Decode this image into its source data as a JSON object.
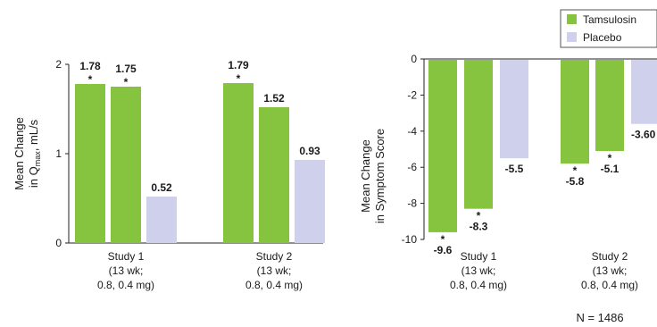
{
  "colors": {
    "tamsulosin": "#86c440",
    "placebo": "#cfd0ec",
    "axis": "#222222"
  },
  "legend": {
    "items": [
      {
        "name": "Tamsulosin",
        "color": "#86c440"
      },
      {
        "name": "Placebo",
        "color": "#cfd0ec"
      }
    ]
  },
  "note": "N = 1486",
  "chart_data": [
    {
      "type": "bar",
      "ylabel_line1": "Mean Change",
      "ylabel_line2": "in Q",
      "ylabel_sub": "max",
      "ylabel_tail": ", mL/s",
      "ylim": [
        0,
        2
      ],
      "yticks": [
        "0",
        "1",
        "2"
      ],
      "categories": [
        {
          "lines": [
            "Study 1",
            "(13 wk;",
            "0.8, 0.4 mg)"
          ],
          "bars": [
            {
              "series": "Tamsulosin",
              "value": 1.78,
              "label": "1.78",
              "star": true
            },
            {
              "series": "Tamsulosin",
              "value": 1.75,
              "label": "1.75",
              "star": true
            },
            {
              "series": "Placebo",
              "value": 0.52,
              "label": "0.52",
              "star": false
            }
          ]
        },
        {
          "lines": [
            "Study 2",
            "(13 wk;",
            "0.8, 0.4 mg)"
          ],
          "bars": [
            {
              "series": "Tamsulosin",
              "value": 1.79,
              "label": "1.79",
              "star": true
            },
            {
              "series": "Tamsulosin",
              "value": 1.52,
              "label": "1.52",
              "star": false
            },
            {
              "series": "Placebo",
              "value": 0.93,
              "label": "0.93",
              "star": false
            }
          ]
        }
      ]
    },
    {
      "type": "bar",
      "ylabel_line1": "Mean Change",
      "ylabel_line2": "in Symptom Score",
      "ylim": [
        -10,
        0
      ],
      "yticks": [
        "0",
        "-2",
        "-4",
        "-6",
        "-8",
        "-10"
      ],
      "categories": [
        {
          "lines": [
            "Study 1",
            "(13 wk;",
            "0.8, 0.4 mg)"
          ],
          "bars": [
            {
              "series": "Tamsulosin",
              "value": -9.6,
              "label": "-9.6",
              "star": true
            },
            {
              "series": "Tamsulosin",
              "value": -8.3,
              "label": "-8.3",
              "star": true
            },
            {
              "series": "Placebo",
              "value": -5.5,
              "label": "-5.5",
              "star": false
            }
          ]
        },
        {
          "lines": [
            "Study 2",
            "(13 wk;",
            "0.8, 0.4 mg)"
          ],
          "bars": [
            {
              "series": "Tamsulosin",
              "value": -5.8,
              "label": "-5.8",
              "star": true
            },
            {
              "series": "Tamsulosin",
              "value": -5.1,
              "label": "-5.1",
              "star": true
            },
            {
              "series": "Placebo",
              "value": -3.6,
              "label": "-3.60",
              "star": false
            }
          ]
        }
      ]
    }
  ]
}
